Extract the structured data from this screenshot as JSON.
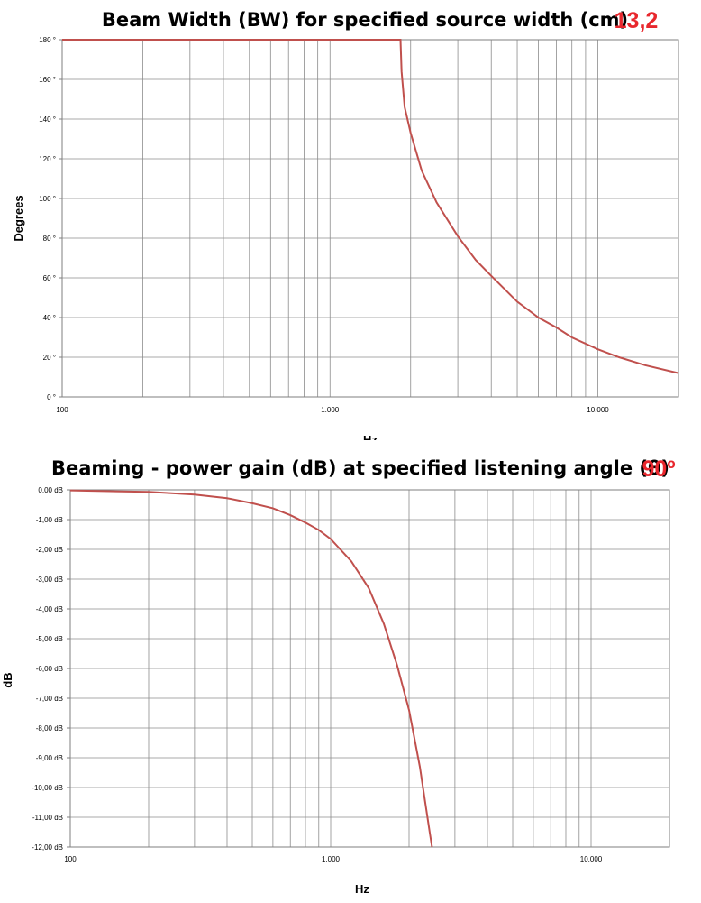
{
  "colors": {
    "series": "#c0504d",
    "parameter": "#e8272d",
    "grid": "#8c8c8c"
  },
  "chart_data": [
    {
      "type": "line",
      "title": "Beam Width (BW) for specified source width (cm)",
      "parameter_value": "13,2",
      "xlabel": "Hz",
      "ylabel": "Degrees",
      "xscale": "log",
      "xlim": [
        100,
        20000
      ],
      "ylim": [
        0,
        180
      ],
      "grid": true,
      "legend": "none",
      "x_tick_labels": [
        {
          "value": 100,
          "label": "100"
        },
        {
          "value": 1000,
          "label": "1.000"
        },
        {
          "value": 10000,
          "label": "10.000"
        }
      ],
      "y_tick_labels": [
        {
          "value": 0,
          "label": "0 °"
        },
        {
          "value": 20,
          "label": "20 °"
        },
        {
          "value": 40,
          "label": "40 °"
        },
        {
          "value": 60,
          "label": "60 °"
        },
        {
          "value": 80,
          "label": "80 °"
        },
        {
          "value": 100,
          "label": "100 °"
        },
        {
          "value": 120,
          "label": "120 °"
        },
        {
          "value": 140,
          "label": "140 °"
        },
        {
          "value": 160,
          "label": "160 °"
        },
        {
          "value": 180,
          "label": "180 °"
        }
      ],
      "series": [
        {
          "x": [
            100,
            500,
            1000,
            1500,
            1833,
            1850,
            1900,
            2000,
            2200,
            2500,
            3000,
            3500,
            4000,
            5000,
            6000,
            7000,
            8000,
            10000,
            12000,
            15000,
            20000
          ],
          "y": [
            180,
            180,
            180,
            180,
            180,
            164,
            146,
            133,
            114,
            98,
            81,
            69,
            61,
            48,
            40,
            35,
            30,
            24,
            20,
            16,
            12
          ]
        }
      ]
    },
    {
      "type": "line",
      "title": "Beaming - power gain (dB) at specified listening angle (θ)",
      "parameter_value": "90º",
      "xlabel": "Hz",
      "ylabel": "dB",
      "xscale": "log",
      "xlim": [
        100,
        20000
      ],
      "ylim": [
        -12,
        0
      ],
      "grid": true,
      "legend": "none",
      "x_tick_labels": [
        {
          "value": 100,
          "label": "100"
        },
        {
          "value": 1000,
          "label": "1.000"
        },
        {
          "value": 10000,
          "label": "10.000"
        }
      ],
      "y_tick_labels": [
        {
          "value": 0,
          "label": "0,00 dB"
        },
        {
          "value": -1,
          "label": "-1,00 dB"
        },
        {
          "value": -2,
          "label": "-2,00 dB"
        },
        {
          "value": -3,
          "label": "-3,00 dB"
        },
        {
          "value": -4,
          "label": "-4,00 dB"
        },
        {
          "value": -5,
          "label": "-5,00 dB"
        },
        {
          "value": -6,
          "label": "-6,00 dB"
        },
        {
          "value": -7,
          "label": "-7,00 dB"
        },
        {
          "value": -8,
          "label": "-8,00 dB"
        },
        {
          "value": -9,
          "label": "-9,00 dB"
        },
        {
          "value": -10,
          "label": "-10,00 dB"
        },
        {
          "value": -11,
          "label": "-11,00 dB"
        },
        {
          "value": -12,
          "label": "-12,00 dB"
        }
      ],
      "series": [
        {
          "x": [
            100,
            200,
            300,
            400,
            500,
            600,
            700,
            800,
            900,
            1000,
            1200,
            1400,
            1600,
            1800,
            2000,
            2200,
            2400,
            2450
          ],
          "y": [
            -0.02,
            -0.07,
            -0.16,
            -0.28,
            -0.45,
            -0.62,
            -0.85,
            -1.1,
            -1.35,
            -1.65,
            -2.4,
            -3.3,
            -4.5,
            -5.9,
            -7.4,
            -9.3,
            -11.5,
            -12.0
          ]
        }
      ]
    }
  ]
}
